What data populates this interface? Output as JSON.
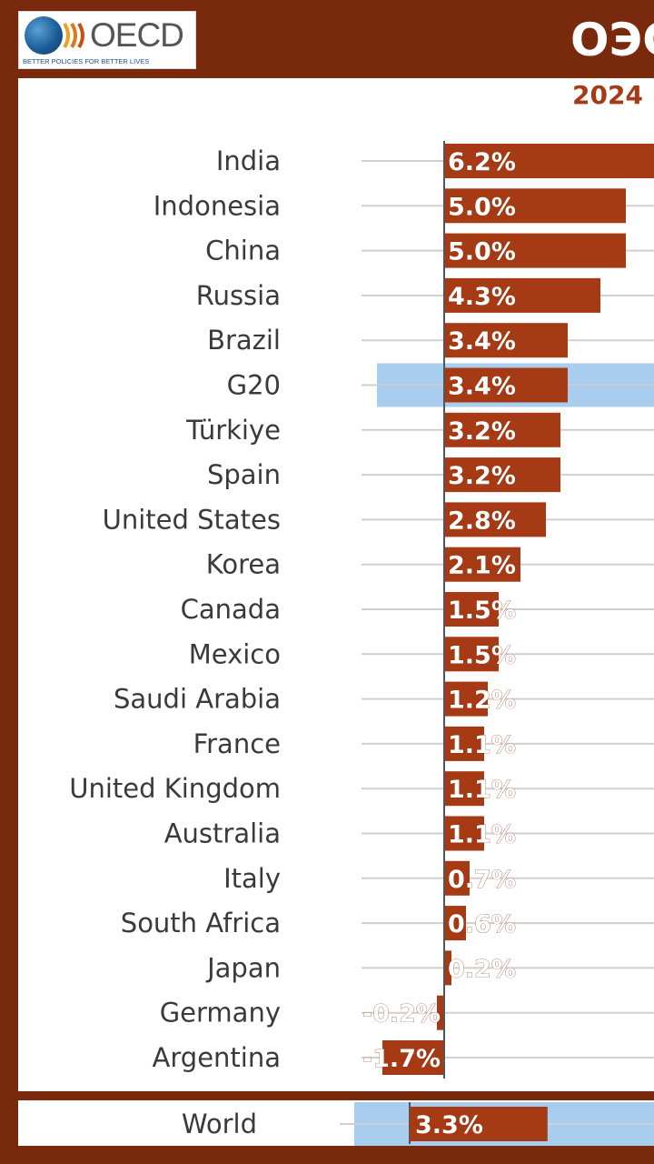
{
  "header": {
    "logo_text": "OECD",
    "logo_tagline": "BETTER POLICIES FOR BETTER LIVES",
    "title": "ОЭС",
    "year": "2024"
  },
  "colors": {
    "bar": "#a63a14",
    "highlight": "#a9cdee",
    "frame": "#7a2a0c"
  },
  "chart_data": {
    "type": "bar",
    "orientation": "horizontal",
    "title": "",
    "unit": "%",
    "categories": [
      "India",
      "Indonesia",
      "China",
      "Russia",
      "Brazil",
      "G20",
      "Türkiye",
      "Spain",
      "United States",
      "Korea",
      "Canada",
      "Mexico",
      "Saudi Arabia",
      "France",
      "United Kingdom",
      "Australia",
      "Italy",
      "South Africa",
      "Japan",
      "Germany",
      "Argentina"
    ],
    "values": [
      6.2,
      5.0,
      5.0,
      4.3,
      3.4,
      3.4,
      3.2,
      3.2,
      2.8,
      2.1,
      1.5,
      1.5,
      1.2,
      1.1,
      1.1,
      1.1,
      0.7,
      0.6,
      0.2,
      -0.2,
      -1.7
    ],
    "value_labels": [
      "6.2%",
      "5.0%",
      "5.0%",
      "4.3%",
      "3.4%",
      "3.4%",
      "3.2%",
      "3.2%",
      "2.8%",
      "2.1%",
      "1.5%",
      "1.5%",
      "1.2%",
      "1.1%",
      "1.1%",
      "1.1%",
      "0.7%",
      "0.6%",
      "0.2%",
      "-0.2%",
      "-1.7%"
    ],
    "highlighted": [
      "G20"
    ],
    "world": {
      "label": "World",
      "value": 3.3,
      "value_label": "3.3%"
    }
  }
}
